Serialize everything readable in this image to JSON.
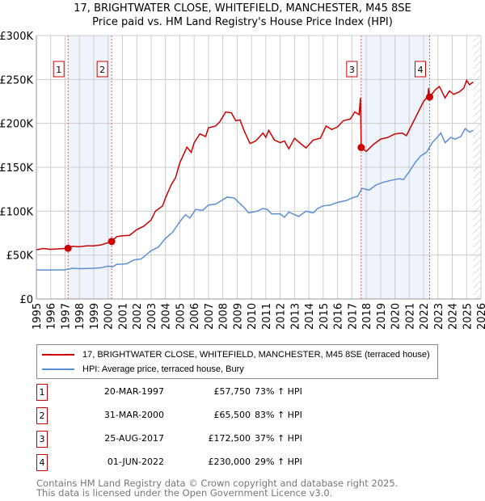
{
  "chart_data": {
    "type": "line",
    "title": "17, BRIGHTWATER CLOSE, WHITEFIELD, MANCHESTER, M45 8SE",
    "subtitle": "Price paid vs. HM Land Registry's House Price Index (HPI)",
    "xlim": [
      1995,
      2026
    ],
    "ylim": [
      0,
      300000
    ],
    "y_ticks": [
      {
        "v": 0,
        "label": "£0"
      },
      {
        "v": 50000,
        "label": "£50K"
      },
      {
        "v": 100000,
        "label": "£100K"
      },
      {
        "v": 150000,
        "label": "£150K"
      },
      {
        "v": 200000,
        "label": "£200K"
      },
      {
        "v": 250000,
        "label": "£250K"
      },
      {
        "v": 300000,
        "label": "£300K"
      }
    ],
    "x_ticks": [
      "1995",
      "1996",
      "1997",
      "1998",
      "1999",
      "2000",
      "2001",
      "2002",
      "2003",
      "2004",
      "2005",
      "2006",
      "2007",
      "2008",
      "2009",
      "2010",
      "2011",
      "2012",
      "2013",
      "2014",
      "2015",
      "2016",
      "2017",
      "2018",
      "2019",
      "2020",
      "2021",
      "2022",
      "2023",
      "2024",
      "2025",
      "2026"
    ],
    "grid": true,
    "forecast_start": 2025.45,
    "shaded_ranges": [
      [
        1997.21,
        2000.25
      ],
      [
        2017.65,
        2022.42
      ]
    ],
    "series": [
      {
        "name": "17, BRIGHTWATER CLOSE, WHITEFIELD, MANCHESTER, M45 8SE (terraced house)",
        "color": "#cc0000",
        "points": [
          [
            1995,
            56000
          ],
          [
            1995.5,
            57500
          ],
          [
            1996,
            56500
          ],
          [
            1996.5,
            57000
          ],
          [
            1997.21,
            57750
          ],
          [
            1997.5,
            60000
          ],
          [
            1998,
            59500
          ],
          [
            1998.5,
            60500
          ],
          [
            1999,
            60500
          ],
          [
            1999.5,
            61500
          ],
          [
            2000.25,
            65500
          ],
          [
            2000.6,
            71000
          ],
          [
            2001,
            72000
          ],
          [
            2001.5,
            72500
          ],
          [
            2002,
            79000
          ],
          [
            2002.5,
            83000
          ],
          [
            2003,
            90000
          ],
          [
            2003.3,
            100000
          ],
          [
            2003.8,
            106000
          ],
          [
            2004,
            115000
          ],
          [
            2004.4,
            130000
          ],
          [
            2004.7,
            138000
          ],
          [
            2005,
            155000
          ],
          [
            2005.5,
            173000
          ],
          [
            2005.8,
            167000
          ],
          [
            2006,
            178000
          ],
          [
            2006.4,
            188000
          ],
          [
            2006.8,
            185000
          ],
          [
            2007,
            195000
          ],
          [
            2007.5,
            197000
          ],
          [
            2007.8,
            202000
          ],
          [
            2008.2,
            213000
          ],
          [
            2008.6,
            212000
          ],
          [
            2008.9,
            203000
          ],
          [
            2009.2,
            204000
          ],
          [
            2009.5,
            191000
          ],
          [
            2009.9,
            177000
          ],
          [
            2010.3,
            180000
          ],
          [
            2010.8,
            189000
          ],
          [
            2011,
            184000
          ],
          [
            2011.2,
            192000
          ],
          [
            2011.6,
            181000
          ],
          [
            2012,
            178000
          ],
          [
            2012.3,
            180000
          ],
          [
            2012.6,
            171000
          ],
          [
            2013,
            183000
          ],
          [
            2013.5,
            176000
          ],
          [
            2013.8,
            172000
          ],
          [
            2014.3,
            181000
          ],
          [
            2014.8,
            183000
          ],
          [
            2015.2,
            197000
          ],
          [
            2015.6,
            193000
          ],
          [
            2016,
            196000
          ],
          [
            2016.4,
            203000
          ],
          [
            2016.9,
            205000
          ],
          [
            2017.2,
            213000
          ],
          [
            2017.5,
            210000
          ],
          [
            2017.6,
            229000
          ],
          [
            2017.65,
            172500
          ],
          [
            2018,
            168000
          ],
          [
            2018.5,
            176000
          ],
          [
            2019,
            182000
          ],
          [
            2019.5,
            184000
          ],
          [
            2020,
            188000
          ],
          [
            2020.5,
            189000
          ],
          [
            2020.8,
            186000
          ],
          [
            2021.2,
            199000
          ],
          [
            2021.6,
            212000
          ],
          [
            2022,
            225000
          ],
          [
            2022.3,
            231000
          ],
          [
            2022.35,
            240000
          ],
          [
            2022.42,
            230000
          ],
          [
            2022.8,
            238000
          ],
          [
            2023.1,
            242000
          ],
          [
            2023.5,
            229000
          ],
          [
            2023.8,
            237000
          ],
          [
            2024.1,
            233000
          ],
          [
            2024.5,
            236000
          ],
          [
            2024.8,
            240000
          ],
          [
            2025,
            249000
          ],
          [
            2025.2,
            244000
          ],
          [
            2025.45,
            247000
          ]
        ]
      },
      {
        "name": "HPI: Average price, terraced house, Bury",
        "color": "#5b8fd4",
        "points": [
          [
            1995,
            33000
          ],
          [
            1996,
            33000
          ],
          [
            1997,
            33300
          ],
          [
            1997.5,
            35000
          ],
          [
            1998,
            34500
          ],
          [
            1999,
            35000
          ],
          [
            1999.5,
            35500
          ],
          [
            2000,
            37500
          ],
          [
            2000.3,
            36500
          ],
          [
            2000.6,
            39500
          ],
          [
            2001.3,
            40000
          ],
          [
            2001.8,
            44500
          ],
          [
            2002.3,
            45500
          ],
          [
            2003,
            55000
          ],
          [
            2003.5,
            59000
          ],
          [
            2004,
            69000
          ],
          [
            2004.5,
            76000
          ],
          [
            2005,
            88000
          ],
          [
            2005.4,
            96000
          ],
          [
            2005.7,
            92000
          ],
          [
            2006.1,
            102000
          ],
          [
            2006.6,
            101000
          ],
          [
            2007,
            107000
          ],
          [
            2007.5,
            108000
          ],
          [
            2007.8,
            111000
          ],
          [
            2008.3,
            116000
          ],
          [
            2008.8,
            115000
          ],
          [
            2009.1,
            110000
          ],
          [
            2009.5,
            104000
          ],
          [
            2009.8,
            98000
          ],
          [
            2010.4,
            100000
          ],
          [
            2010.8,
            103000
          ],
          [
            2011.1,
            102000
          ],
          [
            2011.4,
            97000
          ],
          [
            2012,
            97000
          ],
          [
            2012.3,
            93000
          ],
          [
            2012.6,
            99000
          ],
          [
            2013,
            96000
          ],
          [
            2013.3,
            94000
          ],
          [
            2013.8,
            100000
          ],
          [
            2014.3,
            98000
          ],
          [
            2014.6,
            103000
          ],
          [
            2015,
            106000
          ],
          [
            2015.5,
            107000
          ],
          [
            2016,
            110000
          ],
          [
            2016.6,
            112000
          ],
          [
            2017,
            115000
          ],
          [
            2017.4,
            117000
          ],
          [
            2017.7,
            126000
          ],
          [
            2018.2,
            124000
          ],
          [
            2018.7,
            130000
          ],
          [
            2019.2,
            133000
          ],
          [
            2019.7,
            135000
          ],
          [
            2020.3,
            137000
          ],
          [
            2020.6,
            136000
          ],
          [
            2021,
            145000
          ],
          [
            2021.4,
            155000
          ],
          [
            2021.8,
            163000
          ],
          [
            2022.2,
            167000
          ],
          [
            2022.6,
            178000
          ],
          [
            2023,
            185000
          ],
          [
            2023.2,
            189000
          ],
          [
            2023.5,
            178000
          ],
          [
            2023.9,
            184000
          ],
          [
            2024.2,
            182000
          ],
          [
            2024.6,
            185000
          ],
          [
            2024.9,
            194000
          ],
          [
            2025.2,
            190000
          ],
          [
            2025.45,
            192000
          ]
        ]
      }
    ],
    "sales": [
      {
        "n": "1",
        "x": 2000,
        "date_x": 1997.21,
        "value": 57750
      },
      {
        "n": "2",
        "date_x": 2000.25,
        "value": 65500
      },
      {
        "n": "3",
        "date_x": 2017.65,
        "value": 172500
      },
      {
        "n": "4",
        "date_x": 2022.42,
        "value": 230000
      }
    ]
  },
  "legend": {
    "property": "17, BRIGHTWATER CLOSE, WHITEFIELD, MANCHESTER, M45 8SE (terraced house)",
    "hpi": "HPI: Average price, terraced house, Bury"
  },
  "table": [
    {
      "n": "1",
      "date": "20-MAR-1997",
      "price": "£57,750",
      "hpi": "73% ↑ HPI"
    },
    {
      "n": "2",
      "date": "31-MAR-2000",
      "price": "£65,500",
      "hpi": "83% ↑ HPI"
    },
    {
      "n": "3",
      "date": "25-AUG-2017",
      "price": "£172,500",
      "hpi": "37% ↑ HPI"
    },
    {
      "n": "4",
      "date": "01-JUN-2022",
      "price": "£230,000",
      "hpi": "29% ↑ HPI"
    }
  ],
  "footer": {
    "line1": "Contains HM Land Registry data © Crown copyright and database right 2025.",
    "line2": "This data is licensed under the Open Government Licence v3.0."
  }
}
